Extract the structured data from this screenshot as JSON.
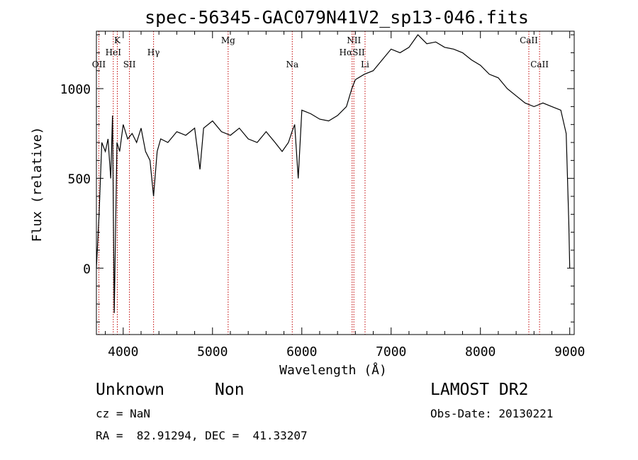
{
  "chart_data": {
    "type": "line",
    "title": "spec-56345-GAC079N41V2_sp13-046.fits",
    "xlabel": "Wavelength (Å)",
    "ylabel": "Flux (relative)",
    "xlim": [
      3700,
      9050
    ],
    "ylim": [
      -370,
      1320
    ],
    "xticks": [
      4000,
      5000,
      6000,
      7000,
      8000,
      9000
    ],
    "yticks": [
      0,
      500,
      1000
    ],
    "grid": false,
    "series": [
      {
        "x": [
          3700,
          3730,
          3760,
          3800,
          3830,
          3860,
          3880,
          3900,
          3930,
          3960,
          4000,
          4050,
          4100,
          4150,
          4200,
          4250,
          4300,
          4340,
          4380,
          4420,
          4500,
          4600,
          4700,
          4800,
          4860,
          4900,
          5000,
          5100,
          5200,
          5300,
          5400,
          5500,
          5600,
          5700,
          5780,
          5850,
          5890,
          5920,
          5960,
          6000,
          6100,
          6200,
          6300,
          6400,
          6500,
          6560,
          6600,
          6700,
          6800,
          6900,
          7000,
          7100,
          7200,
          7300,
          7400,
          7500,
          7600,
          7700,
          7800,
          7900,
          8000,
          8100,
          8200,
          8300,
          8400,
          8500,
          8600,
          8700,
          8800,
          8900,
          8960,
          8990,
          9000
        ],
        "y": [
          0,
          300,
          700,
          650,
          720,
          500,
          850,
          -250,
          700,
          650,
          800,
          720,
          750,
          700,
          780,
          650,
          600,
          400,
          650,
          720,
          700,
          760,
          740,
          780,
          550,
          780,
          820,
          760,
          740,
          780,
          720,
          700,
          760,
          700,
          650,
          700,
          760,
          800,
          500,
          880,
          860,
          830,
          820,
          850,
          900,
          1000,
          1050,
          1080,
          1100,
          1160,
          1220,
          1200,
          1230,
          1300,
          1250,
          1260,
          1230,
          1220,
          1200,
          1160,
          1130,
          1080,
          1060,
          1000,
          960,
          920,
          900,
          920,
          900,
          880,
          750,
          250,
          0
        ]
      }
    ],
    "lines": [
      {
        "name": "OII",
        "x": 3727,
        "row": 3
      },
      {
        "name": "K",
        "x": 3934,
        "row": 1
      },
      {
        "name": "HeI",
        "x": 3889,
        "row": 2
      },
      {
        "name": "SII",
        "x": 4070,
        "row": 3
      },
      {
        "name": "Hγ",
        "x": 4340,
        "row": 2
      },
      {
        "name": "Mg",
        "x": 5175,
        "row": 1
      },
      {
        "name": "Na",
        "x": 5893,
        "row": 3
      },
      {
        "name": "NII",
        "x": 6583,
        "row": 1
      },
      {
        "name": "HαSII",
        "x": 6563,
        "row": 2
      },
      {
        "name": "Li",
        "x": 6708,
        "row": 3
      },
      {
        "name": "CaII",
        "x": 8542,
        "row": 1
      },
      {
        "name": "CaII",
        "x": 8662,
        "row": 3
      }
    ]
  },
  "info": {
    "object": "Unknown",
    "class": "Non",
    "survey": "LAMOST DR2",
    "cz": "cz = NaN",
    "obs_date": "Obs-Date: 20130221",
    "radec": "RA =  82.91294, DEC =  41.33207"
  }
}
